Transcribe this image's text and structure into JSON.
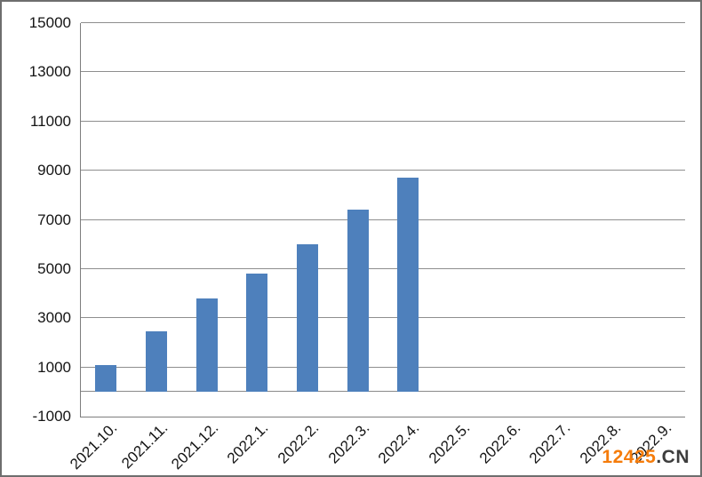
{
  "chart_data": {
    "type": "bar",
    "title": "",
    "xlabel": "",
    "ylabel": "",
    "categories": [
      "2021.10.",
      "2021.11.",
      "2021.12.",
      "2022.1.",
      "2022.2.",
      "2022.3.",
      "2022.4.",
      "2022.5.",
      "2022.6.",
      "2022.7.",
      "2022.8.",
      "2022.9."
    ],
    "values": [
      1100,
      2450,
      3800,
      4800,
      6000,
      7400,
      8700,
      null,
      null,
      null,
      null,
      null
    ],
    "ylim": [
      -1000,
      15000
    ],
    "yticks": [
      -1000,
      1000,
      3000,
      5000,
      7000,
      9000,
      11000,
      13000,
      15000
    ],
    "grid": true,
    "legend": false,
    "bar_color": "#4E80BC",
    "gridline_color": "#8e8e8e",
    "axis_color": "#7d7d7d",
    "x_label_rotation_deg": -45
  },
  "watermark": {
    "primary": "12425",
    "suffix": ".CN",
    "primary_color": "#F57C0B",
    "suffix_color": "#3D3D3D"
  }
}
